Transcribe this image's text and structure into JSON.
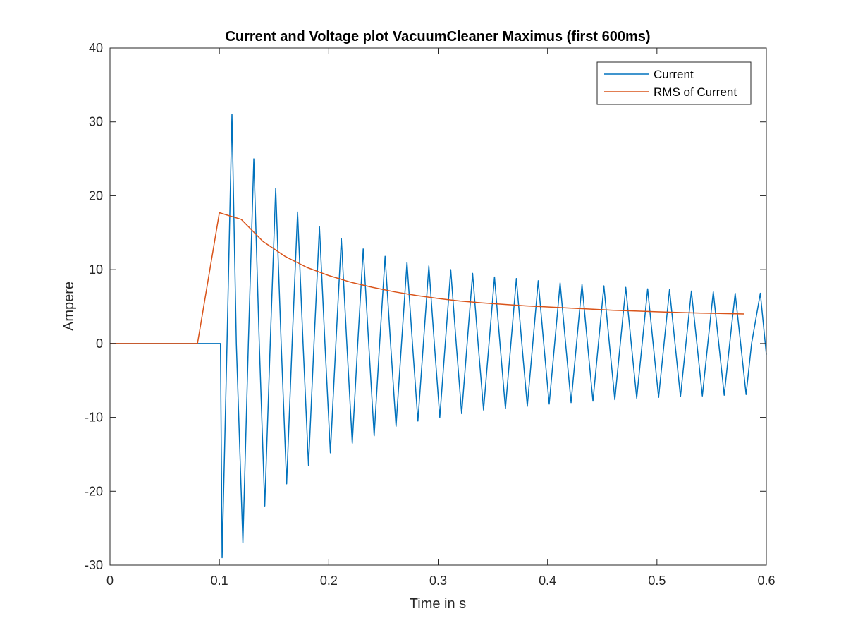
{
  "colors": {
    "current": "#0072BD",
    "rms": "#D95319",
    "axes": "#262626",
    "background": "#ffffff"
  },
  "chart_data": {
    "type": "line",
    "title": "Current and Voltage plot VacuumCleaner Maximus (first 600ms)",
    "xlabel": "Time in s",
    "ylabel": "Ampere",
    "xlim": [
      0,
      0.6
    ],
    "ylim": [
      -30,
      40
    ],
    "xticks": [
      0,
      0.1,
      0.2,
      0.3,
      0.4,
      0.5,
      0.6
    ],
    "xtick_labels": [
      "0",
      "0.1",
      "0.2",
      "0.3",
      "0.4",
      "0.5",
      "0.6"
    ],
    "yticks": [
      -30,
      -20,
      -10,
      0,
      10,
      20,
      30,
      40
    ],
    "ytick_labels": [
      "-30",
      "-20",
      "-10",
      "0",
      "10",
      "20",
      "30",
      "40"
    ],
    "grid": false,
    "legend_position": "top-right",
    "series": [
      {
        "name": "Current",
        "color": "#0072BD",
        "points": [
          [
            0.0,
            0
          ],
          [
            0.1,
            0
          ],
          [
            0.101,
            0
          ],
          [
            0.1025,
            -29
          ],
          [
            0.107,
            0
          ],
          [
            0.1115,
            31
          ],
          [
            0.1155,
            0
          ],
          [
            0.1215,
            -27
          ],
          [
            0.1265,
            0
          ],
          [
            0.1315,
            25
          ],
          [
            0.1365,
            0
          ],
          [
            0.1415,
            -22
          ],
          [
            0.1465,
            0
          ],
          [
            0.1515,
            21
          ],
          [
            0.1565,
            0
          ],
          [
            0.1615,
            -19
          ],
          [
            0.1665,
            0
          ],
          [
            0.1715,
            17.8
          ],
          [
            0.1765,
            0
          ],
          [
            0.1815,
            -16.5
          ],
          [
            0.1865,
            0
          ],
          [
            0.1915,
            15.8
          ],
          [
            0.1965,
            0
          ],
          [
            0.2015,
            -14.8
          ],
          [
            0.2065,
            0
          ],
          [
            0.2115,
            14.2
          ],
          [
            0.2165,
            0
          ],
          [
            0.2215,
            -13.5
          ],
          [
            0.2265,
            0
          ],
          [
            0.2315,
            12.8
          ],
          [
            0.2365,
            0
          ],
          [
            0.2415,
            -12.5
          ],
          [
            0.2465,
            0
          ],
          [
            0.2515,
            11.8
          ],
          [
            0.2565,
            0
          ],
          [
            0.2615,
            -11.2
          ],
          [
            0.2665,
            0
          ],
          [
            0.2715,
            11
          ],
          [
            0.2765,
            0
          ],
          [
            0.2815,
            -10.5
          ],
          [
            0.2865,
            0
          ],
          [
            0.2915,
            10.5
          ],
          [
            0.2965,
            0
          ],
          [
            0.3015,
            -10
          ],
          [
            0.3065,
            0
          ],
          [
            0.3115,
            10
          ],
          [
            0.3165,
            0
          ],
          [
            0.3215,
            -9.5
          ],
          [
            0.3265,
            0
          ],
          [
            0.3315,
            9.5
          ],
          [
            0.3365,
            0
          ],
          [
            0.3415,
            -9
          ],
          [
            0.3465,
            0
          ],
          [
            0.3515,
            9
          ],
          [
            0.3565,
            0
          ],
          [
            0.3615,
            -8.8
          ],
          [
            0.3665,
            0
          ],
          [
            0.3715,
            8.8
          ],
          [
            0.3765,
            0
          ],
          [
            0.3815,
            -8.5
          ],
          [
            0.3865,
            0
          ],
          [
            0.3915,
            8.5
          ],
          [
            0.3965,
            0
          ],
          [
            0.4015,
            -8.2
          ],
          [
            0.4065,
            0
          ],
          [
            0.4115,
            8.2
          ],
          [
            0.4165,
            0
          ],
          [
            0.4215,
            -8
          ],
          [
            0.4265,
            0
          ],
          [
            0.4315,
            8
          ],
          [
            0.4365,
            0
          ],
          [
            0.4415,
            -7.8
          ],
          [
            0.4465,
            0
          ],
          [
            0.4515,
            7.8
          ],
          [
            0.4565,
            0
          ],
          [
            0.4615,
            -7.6
          ],
          [
            0.4665,
            0
          ],
          [
            0.4715,
            7.6
          ],
          [
            0.4765,
            0
          ],
          [
            0.4815,
            -7.4
          ],
          [
            0.4865,
            0
          ],
          [
            0.4915,
            7.4
          ],
          [
            0.4965,
            0
          ],
          [
            0.5015,
            -7.3
          ],
          [
            0.5065,
            0
          ],
          [
            0.5115,
            7.3
          ],
          [
            0.5165,
            0
          ],
          [
            0.5215,
            -7.2
          ],
          [
            0.5265,
            0
          ],
          [
            0.5315,
            7.1
          ],
          [
            0.5365,
            0
          ],
          [
            0.5415,
            -7.1
          ],
          [
            0.5465,
            0
          ],
          [
            0.5515,
            7.0
          ],
          [
            0.5565,
            0
          ],
          [
            0.5615,
            -7.0
          ],
          [
            0.5665,
            0
          ],
          [
            0.5715,
            6.8
          ],
          [
            0.5765,
            0
          ],
          [
            0.5815,
            -6.9
          ],
          [
            0.5865,
            0
          ],
          [
            0.5945,
            6.8
          ],
          [
            0.6,
            -1.5
          ]
        ]
      },
      {
        "name": "RMS of Current",
        "color": "#D95319",
        "points": [
          [
            0.0,
            0
          ],
          [
            0.08,
            0
          ],
          [
            0.1,
            17.7
          ],
          [
            0.12,
            16.8
          ],
          [
            0.14,
            13.8
          ],
          [
            0.16,
            11.8
          ],
          [
            0.18,
            10.3
          ],
          [
            0.2,
            9.2
          ],
          [
            0.22,
            8.3
          ],
          [
            0.24,
            7.6
          ],
          [
            0.26,
            7.0
          ],
          [
            0.28,
            6.5
          ],
          [
            0.3,
            6.1
          ],
          [
            0.32,
            5.75
          ],
          [
            0.34,
            5.5
          ],
          [
            0.36,
            5.3
          ],
          [
            0.38,
            5.1
          ],
          [
            0.4,
            4.95
          ],
          [
            0.42,
            4.8
          ],
          [
            0.44,
            4.65
          ],
          [
            0.46,
            4.5
          ],
          [
            0.48,
            4.4
          ],
          [
            0.5,
            4.3
          ],
          [
            0.52,
            4.2
          ],
          [
            0.54,
            4.12
          ],
          [
            0.56,
            4.06
          ],
          [
            0.58,
            4.0
          ]
        ]
      }
    ]
  }
}
